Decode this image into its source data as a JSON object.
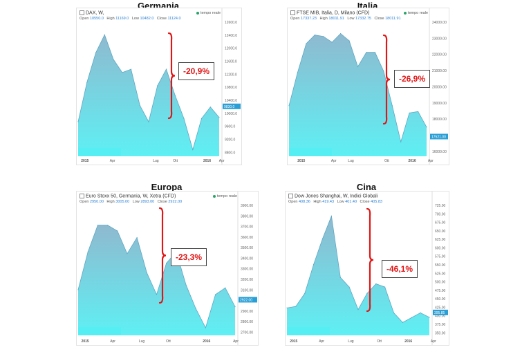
{
  "colors": {
    "fill_top": "#8fb9cf",
    "fill_bottom": "#5ef0f4",
    "line": "#5fa7c3",
    "brace": "#e01515",
    "last_price_bg": "#2a9fd6",
    "logo_bar": "#55eef2"
  },
  "panels": [
    {
      "title": "Germania",
      "header": "DAX, W,",
      "ohlc": [
        "Open",
        "10550.0",
        "High",
        "11169.0",
        "Low",
        "10482.0",
        "Close",
        "11124.0"
      ],
      "realtime": "tempo reale",
      "change": "-20,9%",
      "y_ticks": [
        "12600.0",
        "12400.0",
        "12000.0",
        "11600.0",
        "11200.0",
        "10800.0",
        "10400.0",
        "10000.0",
        "9600.0",
        "9200.0",
        "8800.0"
      ],
      "last_price": "9830.0",
      "x_labels": [
        "2015",
        "Apr",
        "Lug",
        "Ott",
        "2016",
        "Apr"
      ]
    },
    {
      "title": "Italia",
      "header": "FTSE MIB, Italia, D, Milano (CFD)",
      "ohlc": [
        "Open",
        "17337.23",
        "High",
        "18011.91",
        "Low",
        "17332.75",
        "Close",
        "18011.91"
      ],
      "realtime": "tempo reale",
      "change": "-26,9%",
      "y_ticks": [
        "24000.00",
        "23000.00",
        "22000.00",
        "21000.00",
        "20000.00",
        "19000.00",
        "18000.00",
        "17000.00",
        "16000.00"
      ],
      "last_price": "17521.00",
      "x_labels": [
        "2015",
        "Apr",
        "Lug",
        "Ott",
        "2016",
        "Apr"
      ]
    },
    {
      "title": "Europa",
      "header": "Euro Stoxx 50, Germania, W, Xetra (CFD)",
      "ohlc": [
        "Open",
        "2950.00",
        "High",
        "3005.00",
        "Low",
        "2893.00",
        "Close",
        "2922.00"
      ],
      "realtime": "tempo reale",
      "change": "-23,3%",
      "y_ticks": [
        "3900.00",
        "3800.00",
        "3700.00",
        "3600.00",
        "3500.00",
        "3400.00",
        "3300.00",
        "3200.00",
        "3100.00",
        "3000.00",
        "2900.00",
        "2800.00",
        "2700.00"
      ],
      "last_price": "2922.00",
      "x_labels": [
        "2015",
        "Apr",
        "Lug",
        "Ott",
        "2016",
        "Apr"
      ]
    },
    {
      "title": "Cina",
      "header": "Dow Jones Shanghai, W, Indici Globali",
      "ohlc": [
        "Open",
        "408.36",
        "High",
        "419.43",
        "Low",
        "401.40",
        "Close",
        "405.83"
      ],
      "realtime": "",
      "change": "-46,1%",
      "y_ticks": [
        "725.00",
        "700.00",
        "675.00",
        "650.00",
        "625.00",
        "600.00",
        "575.00",
        "550.00",
        "525.00",
        "500.00",
        "475.00",
        "450.00",
        "425.00",
        "400.00",
        "375.00",
        "350.00"
      ],
      "last_price": "395.85",
      "x_labels": [
        "2015",
        "Apr",
        "Lug",
        "Ott",
        "2016",
        "Apr"
      ]
    }
  ],
  "chart_data": [
    {
      "type": "area",
      "title": "Germania",
      "x": [
        "2015-01",
        "2015-02",
        "2015-03",
        "2015-04",
        "2015-05",
        "2015-06",
        "2015-07",
        "2015-08",
        "2015-09",
        "2015-10",
        "2015-11",
        "2015-12",
        "2016-01",
        "2016-02",
        "2016-03",
        "2016-04",
        "2016-05"
      ],
      "y": [
        9700,
        10900,
        11800,
        12350,
        11600,
        11200,
        11300,
        10200,
        9700,
        10800,
        11300,
        10500,
        9800,
        8850,
        9800,
        10150,
        9830
      ],
      "ylim": [
        8650,
        12650
      ],
      "annotation": "-20,9%"
    },
    {
      "type": "area",
      "title": "Italia",
      "x": [
        "2015-01",
        "2015-02",
        "2015-03",
        "2015-04",
        "2015-05",
        "2015-06",
        "2015-07",
        "2015-08",
        "2015-09",
        "2015-10",
        "2015-11",
        "2015-12",
        "2016-01",
        "2016-02",
        "2016-03",
        "2016-04",
        "2016-05"
      ],
      "y": [
        19000,
        21300,
        23300,
        23900,
        23800,
        23400,
        24000,
        23500,
        21700,
        22700,
        22700,
        21400,
        19000,
        16500,
        18500,
        18600,
        17521
      ],
      "ylim": [
        15500,
        24600
      ],
      "annotation": "-26,9%"
    },
    {
      "type": "area",
      "title": "Europa",
      "x": [
        "2015-01",
        "2015-02",
        "2015-03",
        "2015-04",
        "2015-05",
        "2015-06",
        "2015-07",
        "2015-08",
        "2015-09",
        "2015-10",
        "2015-11",
        "2015-12",
        "2016-01",
        "2016-02",
        "2016-03",
        "2016-04",
        "2016-05"
      ],
      "y": [
        3100,
        3500,
        3780,
        3780,
        3720,
        3480,
        3650,
        3280,
        3050,
        3380,
        3500,
        3150,
        2900,
        2700,
        3050,
        3120,
        2922
      ],
      "ylim": [
        2620,
        3960
      ],
      "annotation": "-23,3%"
    },
    {
      "type": "area",
      "title": "Cina",
      "x": [
        "2015-01",
        "2015-02",
        "2015-03",
        "2015-04",
        "2015-05",
        "2015-06",
        "2015-07",
        "2015-08",
        "2015-09",
        "2015-10",
        "2015-11",
        "2015-12",
        "2016-01",
        "2016-02",
        "2016-03",
        "2016-04",
        "2016-05"
      ],
      "y": [
        425,
        430,
        470,
        560,
        640,
        710,
        520,
        490,
        420,
        470,
        500,
        490,
        410,
        380,
        395,
        410,
        395.85
      ],
      "ylim": [
        340,
        735
      ],
      "annotation": "-46,1%"
    }
  ]
}
